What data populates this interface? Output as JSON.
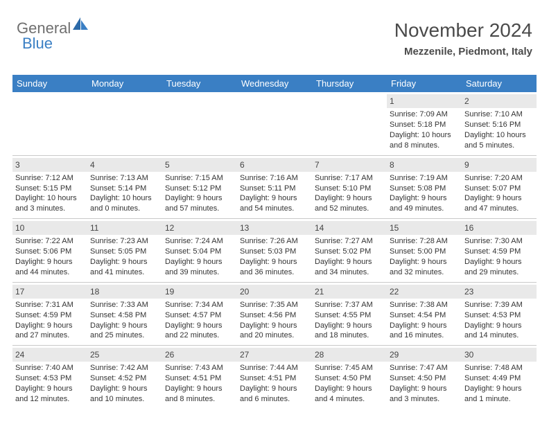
{
  "logo": {
    "primary": "General",
    "accent": "Blue"
  },
  "header": {
    "title": "November 2024",
    "location": "Mezzenile, Piedmont, Italy"
  },
  "colors": {
    "header_bg": "#3a7fc4",
    "header_text": "#ffffff",
    "daynum_bg": "#e9e9e9",
    "border": "#c9c9c9",
    "text": "#333333",
    "logo_gray": "#6f6f6f",
    "logo_blue": "#3a7fc4"
  },
  "days": [
    "Sunday",
    "Monday",
    "Tuesday",
    "Wednesday",
    "Thursday",
    "Friday",
    "Saturday"
  ],
  "weeks": [
    [
      null,
      null,
      null,
      null,
      null,
      {
        "n": "1",
        "sr": "Sunrise: 7:09 AM",
        "ss": "Sunset: 5:18 PM",
        "dl": "Daylight: 10 hours and 8 minutes."
      },
      {
        "n": "2",
        "sr": "Sunrise: 7:10 AM",
        "ss": "Sunset: 5:16 PM",
        "dl": "Daylight: 10 hours and 5 minutes."
      }
    ],
    [
      {
        "n": "3",
        "sr": "Sunrise: 7:12 AM",
        "ss": "Sunset: 5:15 PM",
        "dl": "Daylight: 10 hours and 3 minutes."
      },
      {
        "n": "4",
        "sr": "Sunrise: 7:13 AM",
        "ss": "Sunset: 5:14 PM",
        "dl": "Daylight: 10 hours and 0 minutes."
      },
      {
        "n": "5",
        "sr": "Sunrise: 7:15 AM",
        "ss": "Sunset: 5:12 PM",
        "dl": "Daylight: 9 hours and 57 minutes."
      },
      {
        "n": "6",
        "sr": "Sunrise: 7:16 AM",
        "ss": "Sunset: 5:11 PM",
        "dl": "Daylight: 9 hours and 54 minutes."
      },
      {
        "n": "7",
        "sr": "Sunrise: 7:17 AM",
        "ss": "Sunset: 5:10 PM",
        "dl": "Daylight: 9 hours and 52 minutes."
      },
      {
        "n": "8",
        "sr": "Sunrise: 7:19 AM",
        "ss": "Sunset: 5:08 PM",
        "dl": "Daylight: 9 hours and 49 minutes."
      },
      {
        "n": "9",
        "sr": "Sunrise: 7:20 AM",
        "ss": "Sunset: 5:07 PM",
        "dl": "Daylight: 9 hours and 47 minutes."
      }
    ],
    [
      {
        "n": "10",
        "sr": "Sunrise: 7:22 AM",
        "ss": "Sunset: 5:06 PM",
        "dl": "Daylight: 9 hours and 44 minutes."
      },
      {
        "n": "11",
        "sr": "Sunrise: 7:23 AM",
        "ss": "Sunset: 5:05 PM",
        "dl": "Daylight: 9 hours and 41 minutes."
      },
      {
        "n": "12",
        "sr": "Sunrise: 7:24 AM",
        "ss": "Sunset: 5:04 PM",
        "dl": "Daylight: 9 hours and 39 minutes."
      },
      {
        "n": "13",
        "sr": "Sunrise: 7:26 AM",
        "ss": "Sunset: 5:03 PM",
        "dl": "Daylight: 9 hours and 36 minutes."
      },
      {
        "n": "14",
        "sr": "Sunrise: 7:27 AM",
        "ss": "Sunset: 5:02 PM",
        "dl": "Daylight: 9 hours and 34 minutes."
      },
      {
        "n": "15",
        "sr": "Sunrise: 7:28 AM",
        "ss": "Sunset: 5:00 PM",
        "dl": "Daylight: 9 hours and 32 minutes."
      },
      {
        "n": "16",
        "sr": "Sunrise: 7:30 AM",
        "ss": "Sunset: 4:59 PM",
        "dl": "Daylight: 9 hours and 29 minutes."
      }
    ],
    [
      {
        "n": "17",
        "sr": "Sunrise: 7:31 AM",
        "ss": "Sunset: 4:59 PM",
        "dl": "Daylight: 9 hours and 27 minutes."
      },
      {
        "n": "18",
        "sr": "Sunrise: 7:33 AM",
        "ss": "Sunset: 4:58 PM",
        "dl": "Daylight: 9 hours and 25 minutes."
      },
      {
        "n": "19",
        "sr": "Sunrise: 7:34 AM",
        "ss": "Sunset: 4:57 PM",
        "dl": "Daylight: 9 hours and 22 minutes."
      },
      {
        "n": "20",
        "sr": "Sunrise: 7:35 AM",
        "ss": "Sunset: 4:56 PM",
        "dl": "Daylight: 9 hours and 20 minutes."
      },
      {
        "n": "21",
        "sr": "Sunrise: 7:37 AM",
        "ss": "Sunset: 4:55 PM",
        "dl": "Daylight: 9 hours and 18 minutes."
      },
      {
        "n": "22",
        "sr": "Sunrise: 7:38 AM",
        "ss": "Sunset: 4:54 PM",
        "dl": "Daylight: 9 hours and 16 minutes."
      },
      {
        "n": "23",
        "sr": "Sunrise: 7:39 AM",
        "ss": "Sunset: 4:53 PM",
        "dl": "Daylight: 9 hours and 14 minutes."
      }
    ],
    [
      {
        "n": "24",
        "sr": "Sunrise: 7:40 AM",
        "ss": "Sunset: 4:53 PM",
        "dl": "Daylight: 9 hours and 12 minutes."
      },
      {
        "n": "25",
        "sr": "Sunrise: 7:42 AM",
        "ss": "Sunset: 4:52 PM",
        "dl": "Daylight: 9 hours and 10 minutes."
      },
      {
        "n": "26",
        "sr": "Sunrise: 7:43 AM",
        "ss": "Sunset: 4:51 PM",
        "dl": "Daylight: 9 hours and 8 minutes."
      },
      {
        "n": "27",
        "sr": "Sunrise: 7:44 AM",
        "ss": "Sunset: 4:51 PM",
        "dl": "Daylight: 9 hours and 6 minutes."
      },
      {
        "n": "28",
        "sr": "Sunrise: 7:45 AM",
        "ss": "Sunset: 4:50 PM",
        "dl": "Daylight: 9 hours and 4 minutes."
      },
      {
        "n": "29",
        "sr": "Sunrise: 7:47 AM",
        "ss": "Sunset: 4:50 PM",
        "dl": "Daylight: 9 hours and 3 minutes."
      },
      {
        "n": "30",
        "sr": "Sunrise: 7:48 AM",
        "ss": "Sunset: 4:49 PM",
        "dl": "Daylight: 9 hours and 1 minute."
      }
    ]
  ]
}
